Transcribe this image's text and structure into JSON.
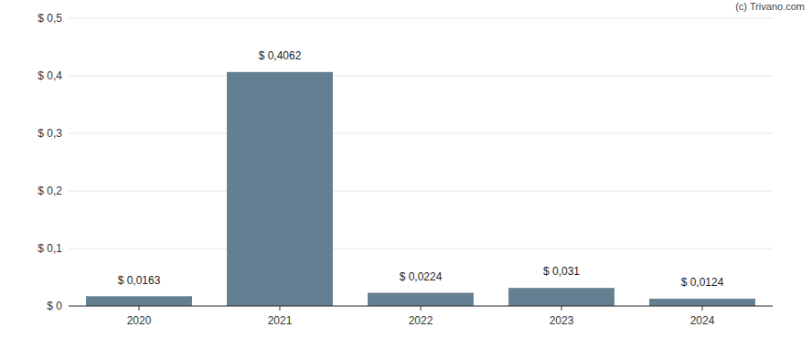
{
  "chart_data": {
    "type": "bar",
    "annotations": [
      "(c) Trivano.com"
    ],
    "categories": [
      "2020",
      "2021",
      "2022",
      "2023",
      "2024"
    ],
    "values": [
      0.0163,
      0.4062,
      0.0224,
      0.031,
      0.0124
    ],
    "value_labels": [
      "$ 0,0163",
      "$ 0,4062",
      "$ 0,0224",
      "$ 0,031",
      "$ 0,0124"
    ],
    "color": "#647f92",
    "ylim": [
      0,
      0.5
    ],
    "yticks": [
      {
        "value": 0,
        "label": "$ 0"
      },
      {
        "value": 0.1,
        "label": "$ 0,1"
      },
      {
        "value": 0.2,
        "label": "$ 0,2"
      },
      {
        "value": 0.3,
        "label": "$ 0,3"
      },
      {
        "value": 0.4,
        "label": "$ 0,4"
      },
      {
        "value": 0.5,
        "label": "$ 0,5"
      }
    ],
    "grid": true,
    "data_labels": true
  }
}
